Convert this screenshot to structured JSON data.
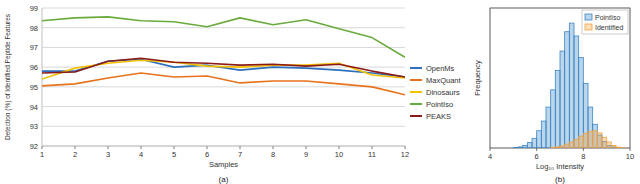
{
  "chart_data": [
    {
      "type": "line",
      "title": "(a)",
      "x_label": "Samples",
      "y_label": "Detection (%) of Identified Peptide Features",
      "x": [
        1,
        2,
        3,
        4,
        5,
        6,
        7,
        8,
        9,
        10,
        11,
        12
      ],
      "xlim": [
        1,
        12
      ],
      "xticks": [
        1,
        2,
        3,
        4,
        5,
        6,
        7,
        8,
        9,
        10,
        11,
        12
      ],
      "ylim": [
        92,
        99
      ],
      "yticks": [
        92,
        93,
        94,
        95,
        96,
        97,
        98,
        99
      ],
      "grid": true,
      "legend": "right",
      "series": [
        {
          "name": "OpenMs",
          "color": "#2e6fbd",
          "values": [
            95.8,
            95.8,
            96.3,
            96.4,
            96.0,
            96.1,
            95.85,
            96.0,
            95.95,
            95.85,
            95.7,
            95.5
          ]
        },
        {
          "name": "MaxQuant",
          "color": "#e8731e",
          "values": [
            95.05,
            95.15,
            95.45,
            95.7,
            95.5,
            95.55,
            95.2,
            95.3,
            95.3,
            95.15,
            95.0,
            94.6
          ]
        },
        {
          "name": "Dinosaurs",
          "color": "#f2c200",
          "values": [
            95.4,
            95.95,
            96.2,
            96.35,
            96.25,
            96.05,
            96.0,
            96.1,
            96.1,
            96.2,
            95.6,
            95.45
          ]
        },
        {
          "name": "PointIso",
          "color": "#6aab3d",
          "values": [
            98.35,
            98.5,
            98.55,
            98.35,
            98.3,
            98.05,
            98.5,
            98.15,
            98.4,
            97.95,
            97.5,
            96.5
          ]
        },
        {
          "name": "PEAKS",
          "color": "#8b1a1a",
          "values": [
            95.7,
            95.75,
            96.3,
            96.45,
            96.25,
            96.2,
            96.1,
            96.15,
            96.05,
            96.15,
            95.8,
            95.5
          ]
        }
      ]
    },
    {
      "type": "histogram",
      "title": "(b)",
      "x_label": "Log₁₀ Intensity",
      "y_label": "Frequency",
      "bins": [
        4.0,
        4.2,
        4.4,
        4.6,
        4.8,
        5.0,
        5.2,
        5.4,
        5.6,
        5.8,
        6.0,
        6.2,
        6.4,
        6.6,
        6.8,
        7.0,
        7.2,
        7.4,
        7.6,
        7.8,
        8.0,
        8.2,
        8.4,
        8.6,
        8.8,
        9.0,
        9.2,
        9.4,
        9.6,
        9.8,
        10.0
      ],
      "xlim": [
        4,
        10
      ],
      "xticks": [
        4,
        6,
        8,
        10
      ],
      "ylim": [
        0,
        650
      ],
      "tick_labels": "x",
      "legend": "top-right",
      "series": [
        {
          "name": "PointIso",
          "color": "#3b86c6",
          "values": [
            0,
            0,
            0,
            0,
            0,
            2,
            5,
            12,
            25,
            45,
            80,
            125,
            190,
            270,
            360,
            450,
            540,
            580,
            520,
            420,
            300,
            190,
            110,
            60,
            30,
            12,
            5,
            2,
            0,
            0
          ]
        },
        {
          "name": "Identified",
          "color": "#f0a040",
          "values": [
            0,
            0,
            0,
            0,
            0,
            0,
            0,
            0,
            0,
            0,
            0,
            0,
            0,
            2,
            5,
            10,
            18,
            28,
            40,
            55,
            68,
            78,
            80,
            70,
            50,
            28,
            12,
            4,
            1,
            0
          ]
        }
      ]
    }
  ]
}
